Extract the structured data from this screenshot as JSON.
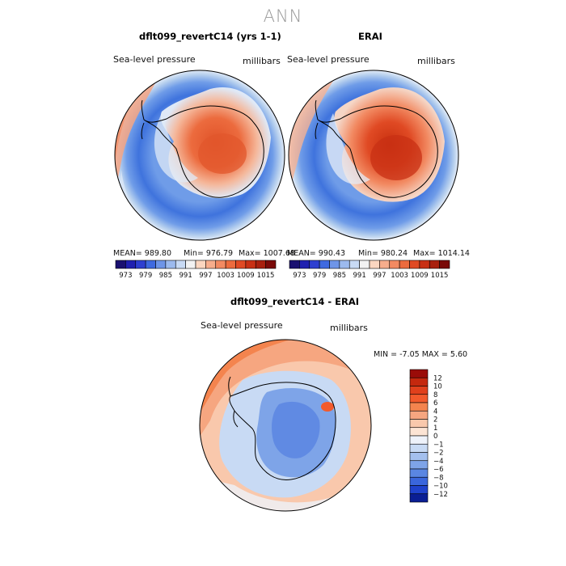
{
  "title": "ANN",
  "colors": {
    "ocean_light": "#b7d0ee",
    "ocean_mid": "#6f9ce8",
    "ocean_deep": "#3f73dd",
    "continent_low": "#f5b79a",
    "continent_mid": "#ec6b3e",
    "continent_high": "#d63a1a",
    "coast": "#000000"
  },
  "panels": [
    {
      "title": "dflt099_revertC14 (yrs 1-1)",
      "field_label": "Sea-level pressure",
      "units_label": "millibars",
      "stats": {
        "mean": "MEAN= 989.80",
        "min": "Min= 976.79",
        "max": "Max= 1007.68"
      }
    },
    {
      "title": "ERAI",
      "field_label": "Sea-level pressure",
      "units_label": "millibars",
      "stats": {
        "mean": "MEAN= 990.43",
        "min": "Min= 980.24",
        "max": "Max= 1014.14"
      }
    },
    {
      "title": "dflt099_revertC14 - ERAI",
      "field_label": "Sea-level pressure",
      "units_label": "millibars",
      "stats": {
        "minmax": "MIN =   -7.05 MAX =    5.60"
      }
    }
  ],
  "chart_data": [
    {
      "type": "heatmap",
      "title": "dflt099_revertC14 (yrs 1-1)",
      "projection": "south-polar-stereographic",
      "variable": "Sea-level pressure",
      "units": "millibars",
      "mean": 989.8,
      "min": 976.79,
      "max": 1007.68,
      "colorbar": {
        "ticks": [
          "973",
          "979",
          "985",
          "991",
          "997",
          "1003",
          "1009",
          "1015"
        ],
        "colors": [
          "#1a1070",
          "#2020b0",
          "#2e3fd0",
          "#3f6ae0",
          "#6e95e8",
          "#9cbaee",
          "#c8daf4",
          "#f2f2f2",
          "#fbd6c0",
          "#f7ad8c",
          "#f28a62",
          "#ec6b3e",
          "#e04a24",
          "#c83014",
          "#a8200e",
          "#7a0a08"
        ]
      }
    },
    {
      "type": "heatmap",
      "title": "ERAI",
      "projection": "south-polar-stereographic",
      "variable": "Sea-level pressure",
      "units": "millibars",
      "mean": 990.43,
      "min": 980.24,
      "max": 1014.14,
      "colorbar": {
        "ticks": [
          "973",
          "979",
          "985",
          "991",
          "997",
          "1003",
          "1009",
          "1015"
        ],
        "colors": [
          "#1a1070",
          "#2020b0",
          "#2e3fd0",
          "#3f6ae0",
          "#6e95e8",
          "#9cbaee",
          "#c8daf4",
          "#f2f2f2",
          "#fbd6c0",
          "#f7ad8c",
          "#f28a62",
          "#ec6b3e",
          "#e04a24",
          "#c83014",
          "#a8200e",
          "#7a0a08"
        ]
      }
    },
    {
      "type": "heatmap",
      "title": "dflt099_revertC14 - ERAI",
      "projection": "south-polar-stereographic",
      "variable": "Sea-level pressure difference",
      "units": "millibars",
      "min": -7.05,
      "max": 5.6,
      "colorbar": {
        "orientation": "vertical",
        "ticks": [
          "12",
          "10",
          "8",
          "6",
          "4",
          "2",
          "1",
          "0",
          "−1",
          "−2",
          "−4",
          "−6",
          "−8",
          "−10",
          "−12"
        ],
        "colors": [
          "#9a0c08",
          "#c4280e",
          "#e0401c",
          "#f25a2c",
          "#f4844e",
          "#f6a680",
          "#f9c8ac",
          "#fce4d4",
          "#eef2fa",
          "#c8daf4",
          "#a4c0ee",
          "#7ea4e8",
          "#5a86e2",
          "#3a66dc",
          "#1f42cc",
          "#0a1e94"
        ]
      }
    }
  ]
}
